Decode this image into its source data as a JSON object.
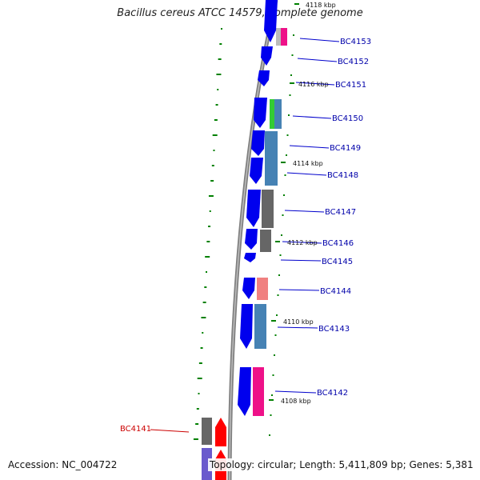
{
  "title": "Bacillus cereus ATCC 14579, complete genome",
  "accession": "Accession: NC_004722",
  "summary": "Topology: circular; Length: 5,411,809 bp; Genes: 5,381",
  "colors": {
    "backbone": "#808080",
    "forward_cds": "#0000ee",
    "gene_label": "#0000aa",
    "highlight_label": "#cc0000",
    "gc_tick": "#008000",
    "pink": "#ee1188",
    "steel_blue": "#4682b4",
    "gray": "#666666",
    "green": "#33cc33",
    "salmon": "#f08080",
    "red": "#ff0000",
    "purple": "#6a5acd"
  },
  "kbp_markers": [
    "4118 kbp",
    "4116 kbp",
    "4114 kbp",
    "4112 kbp",
    "4110 kbp",
    "4108 kbp"
  ],
  "gene_labels": [
    {
      "text": "BC4153",
      "highlight": false
    },
    {
      "text": "BC4152",
      "highlight": false
    },
    {
      "text": "BC4151",
      "highlight": false
    },
    {
      "text": "BC4150",
      "highlight": false
    },
    {
      "text": "BC4149",
      "highlight": false
    },
    {
      "text": "BC4148",
      "highlight": false
    },
    {
      "text": "BC4147",
      "highlight": false
    },
    {
      "text": "BC4146",
      "highlight": false
    },
    {
      "text": "BC4145",
      "highlight": false
    },
    {
      "text": "BC4144",
      "highlight": false
    },
    {
      "text": "BC4143",
      "highlight": false
    },
    {
      "text": "BC4142",
      "highlight": false
    },
    {
      "text": "BC4141",
      "highlight": true
    }
  ]
}
